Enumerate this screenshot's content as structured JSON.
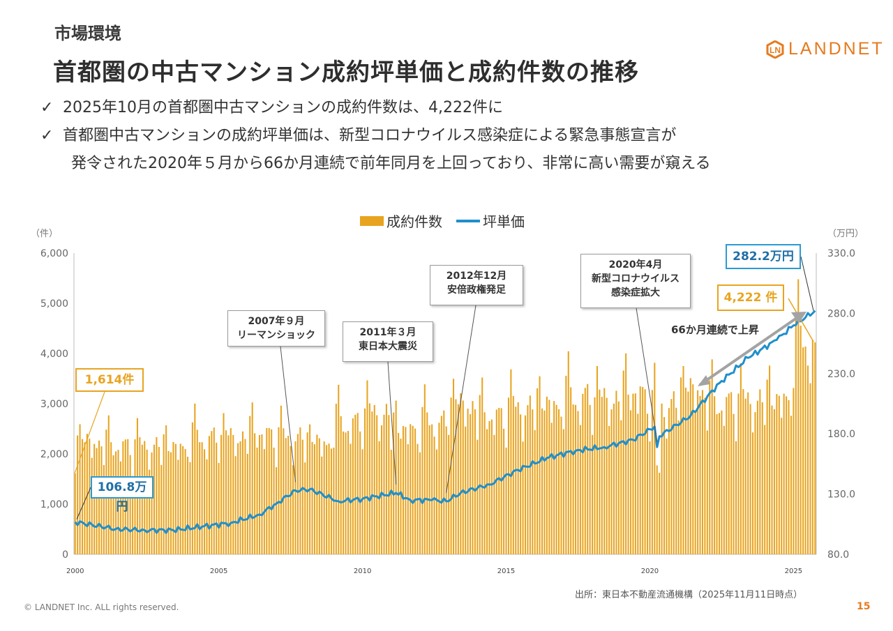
{
  "header": {
    "section": "市場環境",
    "title": "首都圏の中古マンション成約坪単価と成約件数の推移",
    "logo_text": "LANDNET",
    "logo_color": "#e57b1f"
  },
  "bullets": [
    "2025年10月の首都圏中古マンションの成約件数は、4,222件に",
    "首都圏中古マンションの成約坪単価は、新型コロナウイルス感染症による緊急事態宣言が",
    "発令された2020年５月から66か月連続で前年同月を上回っており、非常に高い需要が窺える"
  ],
  "footer": {
    "source": "出所：東日本不動産流通機構（2025年11月11日時点）",
    "copyright": "© LANDNET Inc. ALL rights reserved.",
    "page": "15"
  },
  "chart_data": {
    "type": "bar+line",
    "legend": [
      {
        "name": "成約件数",
        "color": "#e8a420",
        "kind": "bar"
      },
      {
        "name": "坪単価",
        "color": "#1f8fcc",
        "kind": "line"
      }
    ],
    "y_left": {
      "unit": "（件）",
      "range": [
        0,
        6000
      ],
      "ticks": [
        "0",
        "1,000",
        "2,000",
        "3,000",
        "4,000",
        "5,000",
        "6,000"
      ]
    },
    "y_right": {
      "unit": "（万円）",
      "range": [
        80,
        330
      ],
      "ticks": [
        "80.0",
        "130.0",
        "180.0",
        "230.0",
        "280.0",
        "330.0"
      ]
    },
    "x_ticks": [
      "2000",
      "2005",
      "2010",
      "2015",
      "2020",
      "2025"
    ],
    "x_range": [
      "2000-01",
      "2025-10"
    ],
    "annual_count_levels": [
      {
        "year": 2000,
        "count": 2250
      },
      {
        "year": 2001,
        "count": 2150
      },
      {
        "year": 2002,
        "count": 2150
      },
      {
        "year": 2003,
        "count": 2150
      },
      {
        "year": 2004,
        "count": 2300
      },
      {
        "year": 2005,
        "count": 2350
      },
      {
        "year": 2006,
        "count": 2400
      },
      {
        "year": 2007,
        "count": 2300
      },
      {
        "year": 2008,
        "count": 2250
      },
      {
        "year": 2009,
        "count": 2600
      },
      {
        "year": 2010,
        "count": 2800
      },
      {
        "year": 2011,
        "count": 2500
      },
      {
        "year": 2012,
        "count": 2600
      },
      {
        "year": 2013,
        "count": 3000
      },
      {
        "year": 2014,
        "count": 2750
      },
      {
        "year": 2015,
        "count": 2900
      },
      {
        "year": 2016,
        "count": 3000
      },
      {
        "year": 2017,
        "count": 3100
      },
      {
        "year": 2018,
        "count": 3100
      },
      {
        "year": 2019,
        "count": 3200
      },
      {
        "year": 2020,
        "count": 2950
      },
      {
        "year": 2021,
        "count": 3300
      },
      {
        "year": 2022,
        "count": 3000
      },
      {
        "year": 2023,
        "count": 3050
      },
      {
        "year": 2024,
        "count": 3100
      },
      {
        "year": 2025,
        "count": 4200
      }
    ],
    "price_points": [
      {
        "date": "2000-01",
        "value": 106.8
      },
      {
        "date": "2001-06",
        "value": 101
      },
      {
        "date": "2002-06",
        "value": 100
      },
      {
        "date": "2003-06",
        "value": 100
      },
      {
        "date": "2004-06",
        "value": 103
      },
      {
        "date": "2005-06",
        "value": 106
      },
      {
        "date": "2006-06",
        "value": 113
      },
      {
        "date": "2007-01",
        "value": 122
      },
      {
        "date": "2007-09",
        "value": 133
      },
      {
        "date": "2008-03",
        "value": 134
      },
      {
        "date": "2009-03",
        "value": 124
      },
      {
        "date": "2010-01",
        "value": 126
      },
      {
        "date": "2011-03",
        "value": 131
      },
      {
        "date": "2011-09",
        "value": 125
      },
      {
        "date": "2012-06",
        "value": 125
      },
      {
        "date": "2012-12",
        "value": 124
      },
      {
        "date": "2013-06",
        "value": 131
      },
      {
        "date": "2014-06",
        "value": 138
      },
      {
        "date": "2015-06",
        "value": 150
      },
      {
        "date": "2016-06",
        "value": 160
      },
      {
        "date": "2017-06",
        "value": 166
      },
      {
        "date": "2018-06",
        "value": 169
      },
      {
        "date": "2019-06",
        "value": 175
      },
      {
        "date": "2020-03",
        "value": 186
      },
      {
        "date": "2020-04",
        "value": 169
      },
      {
        "date": "2020-05",
        "value": 178
      },
      {
        "date": "2021-06",
        "value": 195
      },
      {
        "date": "2022-06",
        "value": 222
      },
      {
        "date": "2023-06",
        "value": 243
      },
      {
        "date": "2024-06",
        "value": 258
      },
      {
        "date": "2025-01",
        "value": 270
      },
      {
        "date": "2025-10",
        "value": 282.2
      }
    ],
    "annotations": {
      "start_count": "1,614件",
      "start_price": "106.8万円",
      "end_price": "282.2万円",
      "end_count": "4,222 件",
      "trend": "66か月連続で上昇",
      "events": [
        {
          "date": "2007-09",
          "line1": "2007年９月",
          "line2": "リーマンショック"
        },
        {
          "date": "2011-03",
          "line1": "2011年３月",
          "line2": "東日本大震災"
        },
        {
          "date": "2012-12",
          "line1": "2012年12月",
          "line2": "安倍政権発足"
        },
        {
          "date": "2020-04",
          "line1": "2020年4月",
          "line2": "新型コロナウイルス",
          "line3": "感染症拡大"
        }
      ]
    }
  }
}
